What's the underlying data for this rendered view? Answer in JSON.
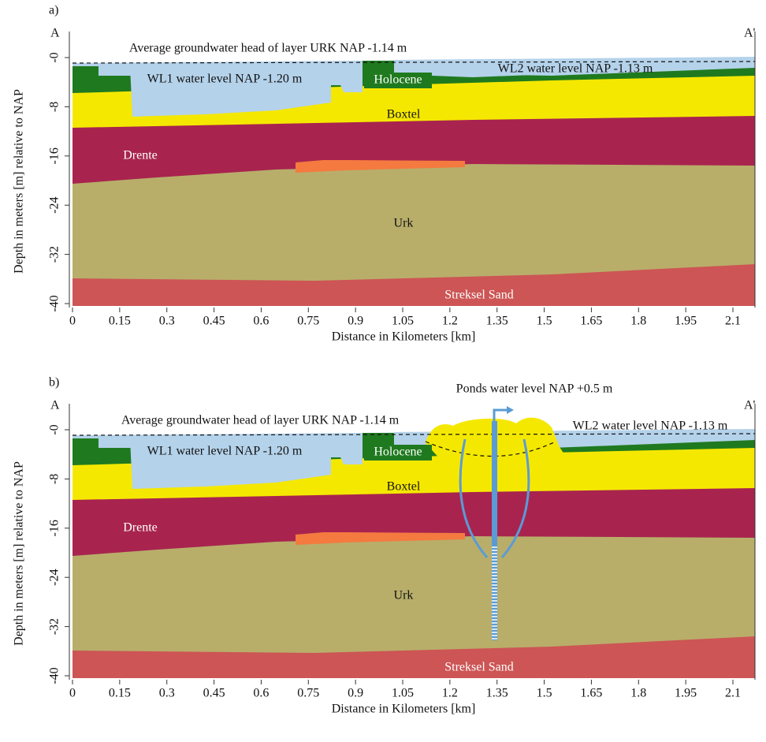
{
  "panels": [
    {
      "label": "a)",
      "left_end": "A",
      "right_end": "A'",
      "top_annotation": "Average groundwater head of layer URK NAP -1.14 m",
      "wl1": "WL1 water level NAP -1.20 m",
      "wl2": "WL2 water level NAP -1.13 m",
      "layers": {
        "holocene": "Holocene",
        "boxtel": "Boxtel",
        "drente": "Drente",
        "urk": "Urk",
        "streksel": "Streksel Sand"
      },
      "x_axis": {
        "title": "Distance in Kilometers [km]",
        "ticks": [
          "0",
          "0.15",
          "0.3",
          "0.45",
          "0.6",
          "0.75",
          "0.9",
          "1.05",
          "1.2",
          "1.35",
          "1.5",
          "1.65",
          "1.8",
          "1.95",
          "2.1"
        ]
      },
      "y_axis": {
        "title": "Depth in meters [m] relative to NAP",
        "ticks": [
          "-0",
          "-8",
          "-16",
          "-24",
          "-32",
          "-40"
        ]
      }
    },
    {
      "label": "b)",
      "left_end": "A",
      "right_end": "A'",
      "top_annotation": "Average groundwater head of layer URK NAP -1.14 m",
      "wl1": "WL1 water level NAP -1.20 m",
      "wl2": "WL2 water level NAP -1.13 m",
      "ponds": "Ponds water level NAP +0.5 m",
      "layers": {
        "holocene": "Holocene",
        "boxtel": "Boxtel",
        "drente": "Drente",
        "urk": "Urk",
        "streksel": "Streksel Sand"
      },
      "x_axis": {
        "title": "Distance in Kilometers [km]",
        "ticks": [
          "0",
          "0.15",
          "0.3",
          "0.45",
          "0.6",
          "0.75",
          "0.9",
          "1.05",
          "1.2",
          "1.35",
          "1.5",
          "1.65",
          "1.8",
          "1.95",
          "2.1"
        ]
      },
      "y_axis": {
        "title": "Depth in meters [m] relative to NAP",
        "ticks": [
          "-0",
          "-8",
          "-16",
          "-24",
          "-32",
          "-40"
        ]
      }
    }
  ]
}
